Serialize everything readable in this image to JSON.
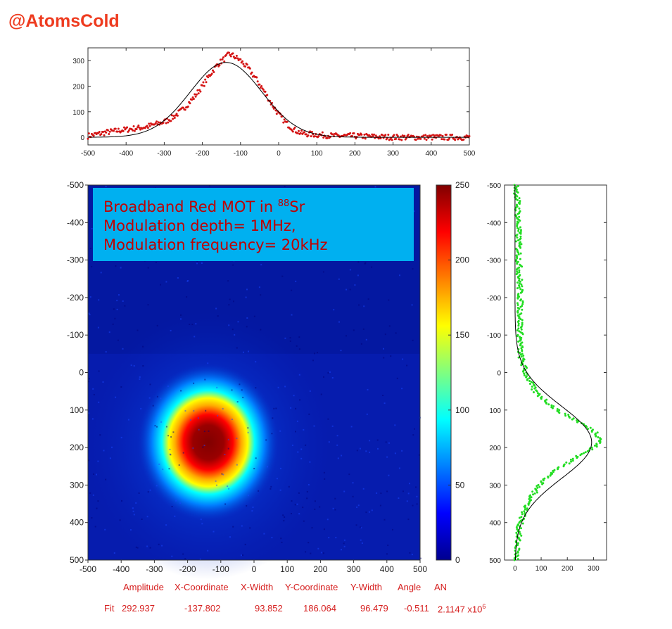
{
  "watermark": "@AtomsCold",
  "annotation": {
    "line1_prefix": "Broadband Red MOT in ",
    "line1_sup": "88",
    "line1_suffix": "Sr",
    "line2": "Modulation depth= 1MHz,",
    "line3": "Modulation frequency= 20kHz"
  },
  "fit_table": {
    "headers": [
      "Amplitude",
      "X-Coordinate",
      "X-Width",
      "Y-Coordinate",
      "Y-Width",
      "Angle",
      "AN"
    ],
    "row_label": "Fit",
    "values": [
      "292.937",
      "-137.802",
      "93.852",
      "186.064",
      "96.479",
      "-0.511",
      "2.1147 x10"
    ],
    "an_exponent": "6"
  },
  "colors": {
    "watermark": "#ee3b1f",
    "annotation_bg": "#00b0f0",
    "annotation_text": "#c00000",
    "fit_text": "#d62020",
    "x_profile_points": "#d41515",
    "y_profile_points": "#22dd22",
    "fit_curve": "#000000"
  },
  "chart_data": [
    {
      "type": "scatter",
      "title": "",
      "xlabel": "",
      "ylabel": "",
      "xlim": [
        -500,
        500
      ],
      "ylim": [
        -30,
        350
      ],
      "xticks": [
        -500,
        -400,
        -300,
        -200,
        -100,
        0,
        100,
        200,
        300,
        400,
        500
      ],
      "yticks": [
        0,
        100,
        200,
        300
      ],
      "series": [
        {
          "kind": "points",
          "color": "#d41515",
          "x": [
            -500,
            -450,
            -400,
            -350,
            -300,
            -280,
            -250,
            -220,
            -200,
            -180,
            -160,
            -140,
            -130,
            -120,
            -100,
            -80,
            -60,
            -40,
            -20,
            0,
            20,
            40,
            60,
            100,
            150,
            200,
            300,
            400,
            500
          ],
          "y": [
            5,
            20,
            30,
            40,
            60,
            75,
            110,
            160,
            200,
            245,
            285,
            310,
            325,
            320,
            300,
            270,
            230,
            185,
            135,
            90,
            55,
            30,
            15,
            10,
            5,
            5,
            0,
            0,
            0
          ]
        },
        {
          "kind": "fit",
          "color": "#000000",
          "model": "gaussian",
          "amplitude": 292.937,
          "center": -137.802,
          "width": 93.852
        }
      ]
    },
    {
      "type": "heatmap",
      "title": "",
      "xlim": [
        -500,
        500
      ],
      "ylim": [
        -500,
        500
      ],
      "xticks": [
        -500,
        -400,
        -300,
        -200,
        -100,
        0,
        100,
        200,
        300,
        400,
        500
      ],
      "yticks": [
        -500,
        -400,
        -300,
        -200,
        -100,
        0,
        100,
        200,
        300,
        400,
        500
      ],
      "y_axis_reversed": true,
      "colormap": "jet",
      "clim": [
        0,
        250
      ],
      "colorbar_ticks": [
        0,
        50,
        100,
        150,
        200,
        250
      ],
      "peak": {
        "x": -137.802,
        "y": 186.064,
        "amplitude": 292.937
      }
    },
    {
      "type": "scatter",
      "title": "",
      "xlim": [
        -40,
        350
      ],
      "ylim": [
        -500,
        500
      ],
      "y_axis_reversed": true,
      "xticks": [
        0,
        100,
        200,
        300
      ],
      "yticks": [
        -500,
        -400,
        -300,
        -200,
        -100,
        0,
        100,
        200,
        300,
        400,
        500
      ],
      "series": [
        {
          "kind": "points",
          "color": "#22dd22",
          "y": [
            -500,
            -450,
            -400,
            -300,
            -200,
            -100,
            -50,
            0,
            50,
            100,
            130,
            160,
            180,
            200,
            220,
            250,
            280,
            300,
            350,
            400,
            450,
            500
          ],
          "x": [
            5,
            10,
            12,
            15,
            20,
            20,
            20,
            40,
            75,
            160,
            240,
            310,
            330,
            300,
            250,
            180,
            120,
            90,
            50,
            20,
            10,
            5
          ]
        },
        {
          "kind": "fit",
          "color": "#000000",
          "model": "gaussian",
          "amplitude": 292.937,
          "center": 186.064,
          "width": 96.479
        }
      ]
    }
  ]
}
